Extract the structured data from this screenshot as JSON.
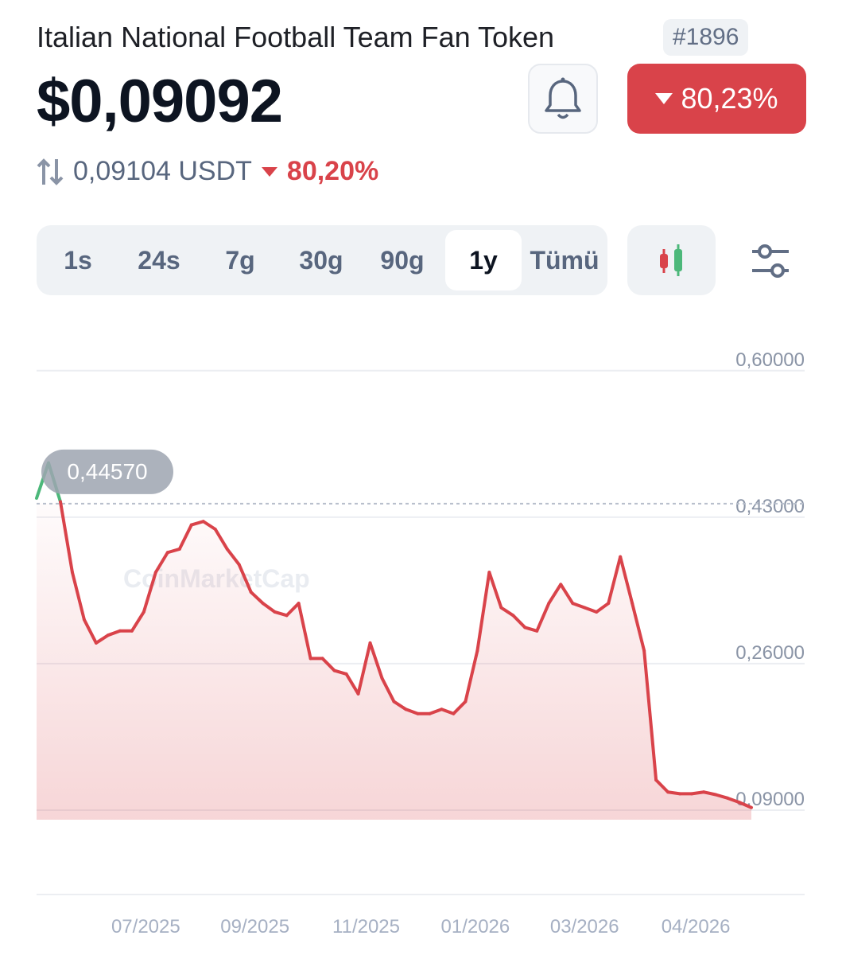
{
  "header": {
    "title": "Italian National Football Team Fan Token",
    "rank": "#1896",
    "price": "$0,09092",
    "change": "80,23%",
    "usdt_price": "0,09104 USDT",
    "usdt_change": "80,20%"
  },
  "tabs": {
    "items": [
      "1s",
      "24s",
      "7g",
      "30g",
      "90g",
      "1y",
      "Tümü"
    ],
    "active": 5
  },
  "chart_data": {
    "type": "line",
    "watermark": "CoinMarketCap",
    "x": [
      0,
      6,
      12,
      18,
      24,
      30,
      36,
      42,
      48,
      54,
      60,
      66,
      72,
      78,
      84,
      90,
      96,
      102,
      108,
      114,
      120,
      126,
      132,
      138,
      144,
      150,
      156,
      162,
      168,
      174,
      180,
      186,
      192,
      198,
      204,
      210,
      216,
      222,
      228,
      234,
      240,
      246,
      252,
      258,
      264,
      270,
      276,
      282,
      288,
      294,
      300,
      306,
      312,
      318,
      324,
      330,
      336,
      342,
      348,
      354,
      360
    ],
    "values": [
      0.452,
      0.493,
      0.448,
      0.366,
      0.311,
      0.284,
      0.293,
      0.298,
      0.298,
      0.32,
      0.366,
      0.389,
      0.393,
      0.421,
      0.425,
      0.416,
      0.393,
      0.375,
      0.343,
      0.33,
      0.32,
      0.316,
      0.33,
      0.266,
      0.266,
      0.252,
      0.248,
      0.225,
      0.284,
      0.243,
      0.216,
      0.207,
      0.202,
      0.202,
      0.207,
      0.202,
      0.216,
      0.275,
      0.366,
      0.325,
      0.316,
      0.302,
      0.298,
      0.33,
      0.352,
      0.33,
      0.325,
      0.32,
      0.33,
      0.384,
      0.33,
      0.275,
      0.125,
      0.111,
      0.109,
      0.109,
      0.111,
      0.108,
      0.104,
      0.099,
      0.093
    ],
    "color": "#d9434a",
    "up_color": "#4cb87a",
    "reference": {
      "value": 0.4457,
      "label": "0,44570"
    },
    "xlim": [
      0,
      360
    ],
    "xticks": [
      {
        "value": 55,
        "label": "07/2025"
      },
      {
        "value": 110,
        "label": "09/2025"
      },
      {
        "value": 166,
        "label": "11/2025"
      },
      {
        "value": 221,
        "label": "01/2026"
      },
      {
        "value": 276,
        "label": "03/2026"
      },
      {
        "value": 332,
        "label": "04/2026"
      }
    ],
    "ylim": [
      0.0789,
      0.6118
    ],
    "yticks": [
      {
        "value": 0.09,
        "label": "0,09000"
      },
      {
        "value": 0.26,
        "label": "0,26000"
      },
      {
        "value": 0.43,
        "label": "0,43000"
      },
      {
        "value": 0.6,
        "label": "0,60000"
      }
    ],
    "grid": true
  }
}
